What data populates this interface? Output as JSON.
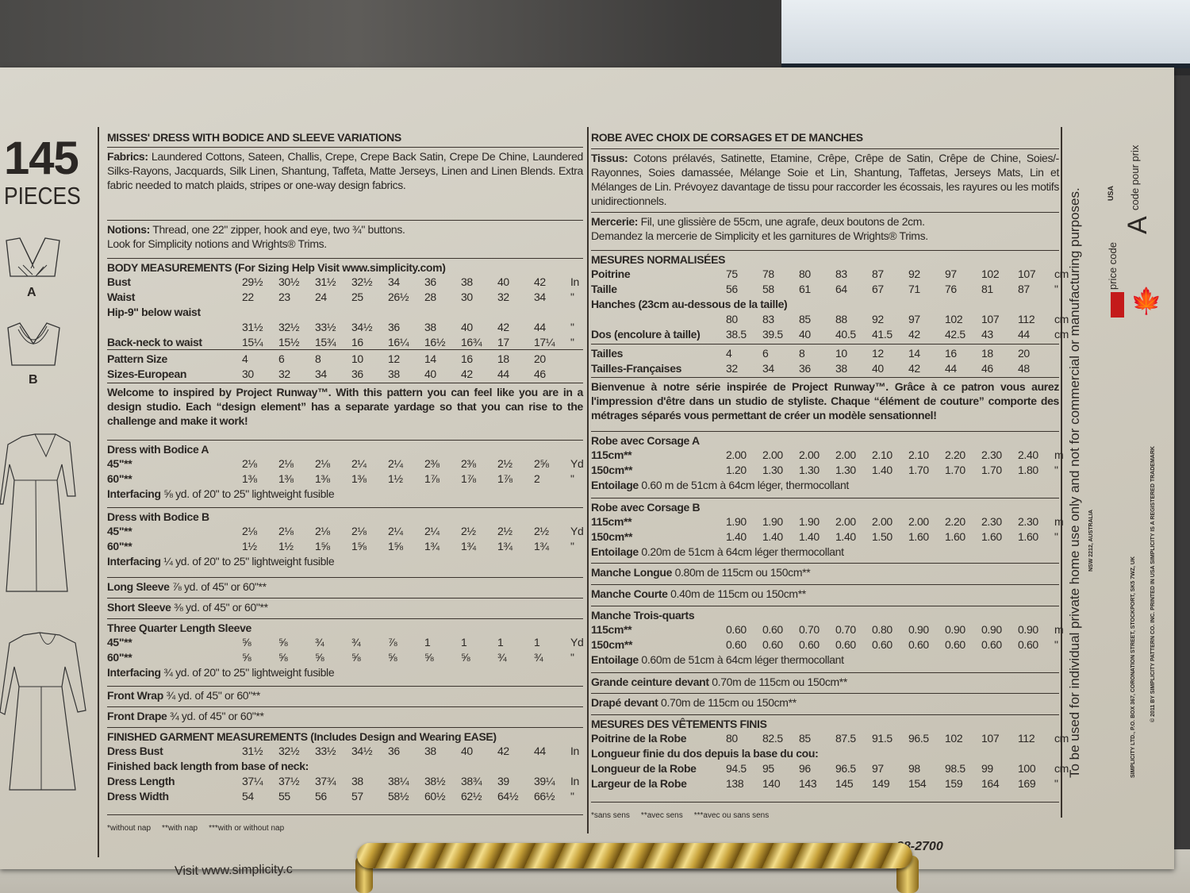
{
  "pieces": {
    "count": "145",
    "label": "PIECES",
    "views": [
      "A",
      "B"
    ]
  },
  "left": [
    {
      "type": "title",
      "text": "MISSES' DRESS WITH BODICE AND SLEEVE VARIATIONS"
    },
    {
      "type": "para",
      "label": "Fabrics:",
      "text": "Laundered Cottons, Sateen, Challis, Crepe, Crepe Back Satin, Crepe De Chine, Laundered Silks-Rayons, Jacquards, Silk Linen, Shantung, Taffeta, Matte Jerseys, Linen and Linen Blends. Extra fabric needed to match plaids, stripes or one-way design fabrics."
    },
    {
      "type": "para",
      "label": "Notions:",
      "text": "Thread, one 22\" zipper, hook and eye, two ¾\" buttons.",
      "line2": "Look for Simplicity notions and Wrights® Trims."
    },
    {
      "type": "table",
      "heading": "BODY MEASUREMENTS (For Sizing Help Visit www.simplicity.com)",
      "rows": [
        {
          "label": "Bust",
          "values": [
            "29½",
            "30½",
            "31½",
            "32½",
            "34",
            "36",
            "38",
            "40",
            "42"
          ],
          "unit": "In"
        },
        {
          "label": "Waist",
          "values": [
            "22",
            "23",
            "24",
            "25",
            "26½",
            "28",
            "30",
            "32",
            "34"
          ],
          "unit": "\""
        },
        {
          "label": "Hip-9\" below waist"
        },
        {
          "label": "",
          "values": [
            "31½",
            "32½",
            "33½",
            "34½",
            "36",
            "38",
            "40",
            "42",
            "44"
          ],
          "unit": "\""
        },
        {
          "label": "Back-neck to waist",
          "values": [
            "15¼",
            "15½",
            "15¾",
            "16",
            "16¼",
            "16½",
            "16¾",
            "17",
            "17¼"
          ],
          "unit": "\""
        }
      ]
    },
    {
      "type": "table",
      "rows": [
        {
          "label": "Pattern Size",
          "values": [
            "4",
            "6",
            "8",
            "10",
            "12",
            "14",
            "16",
            "18",
            "20"
          ]
        },
        {
          "label": "Sizes-European",
          "values": [
            "30",
            "32",
            "34",
            "36",
            "38",
            "40",
            "42",
            "44",
            "46"
          ]
        }
      ]
    },
    {
      "type": "para",
      "bold": true,
      "text": "Welcome to inspired by Project Runway™. With this pattern you can feel like you are in a design studio. Each “design element” has a separate yardage so that you can rise to the challenge and make it work!"
    },
    {
      "type": "table",
      "heading": "Dress with Bodice A",
      "rows": [
        {
          "label": "45\"**",
          "values": [
            "2⅛",
            "2⅛",
            "2⅛",
            "2¼",
            "2¼",
            "2⅜",
            "2⅜",
            "2½",
            "2⅝"
          ],
          "unit": "Yd"
        },
        {
          "label": "60\"**",
          "values": [
            "1⅜",
            "1⅜",
            "1⅜",
            "1⅜",
            "1½",
            "1⅞",
            "1⅞",
            "1⅞",
            "2"
          ],
          "unit": "\""
        }
      ],
      "note": {
        "label": "Interfacing",
        "text": "⅝ yd. of 20\" to 25\" lightweight fusible"
      }
    },
    {
      "type": "table",
      "heading": "Dress with Bodice B",
      "rows": [
        {
          "label": "45\"**",
          "values": [
            "2⅛",
            "2⅛",
            "2⅛",
            "2⅛",
            "2¼",
            "2¼",
            "2½",
            "2½",
            "2½"
          ],
          "unit": "Yd"
        },
        {
          "label": "60\"**",
          "values": [
            "1½",
            "1½",
            "1⅝",
            "1⅝",
            "1⅝",
            "1¾",
            "1¾",
            "1¾",
            "1¾"
          ],
          "unit": "\""
        }
      ],
      "note": {
        "label": "Interfacing",
        "text": "¼ yd. of 20\" to 25\" lightweight fusible"
      }
    },
    {
      "type": "para",
      "label": "Long Sleeve",
      "text": "⅞ yd. of 45\" or 60\"**"
    },
    {
      "type": "para",
      "label": "Short Sleeve",
      "text": "⅜ yd. of 45\" or 60\"**"
    },
    {
      "type": "table",
      "heading": "Three Quarter Length Sleeve",
      "rows": [
        {
          "label": "45\"**",
          "values": [
            "⅝",
            "⅝",
            "¾",
            "¾",
            "⅞",
            "1",
            "1",
            "1",
            "1"
          ],
          "unit": "Yd"
        },
        {
          "label": "60\"**",
          "values": [
            "⅝",
            "⅝",
            "⅝",
            "⅝",
            "⅝",
            "⅝",
            "⅝",
            "¾",
            "¾"
          ],
          "unit": "\""
        }
      ],
      "note": {
        "label": "Interfacing",
        "text": "¾ yd. of 20\" to 25\" lightweight fusible"
      }
    },
    {
      "type": "para",
      "label": "Front Wrap",
      "text": "¾ yd. of 45\" or 60\"**"
    },
    {
      "type": "para",
      "label": "Front Drape",
      "text": "¾ yd. of 45\" or 60\"**"
    },
    {
      "type": "table",
      "heading": "FINISHED GARMENT MEASUREMENTS (Includes Design and Wearing EASE)",
      "rows": [
        {
          "label": "Dress Bust",
          "values": [
            "31½",
            "32½",
            "33½",
            "34½",
            "36",
            "38",
            "40",
            "42",
            "44"
          ],
          "unit": "In"
        },
        {
          "label": "Finished back length from base of neck:"
        },
        {
          "label": "Dress Length",
          "values": [
            "37¼",
            "37½",
            "37¾",
            "38",
            "38¼",
            "38½",
            "38¾",
            "39",
            "39¼"
          ],
          "unit": "In"
        },
        {
          "label": "Dress Width",
          "values": [
            "54",
            "55",
            "56",
            "57",
            "58½",
            "60½",
            "62½",
            "64½",
            "66½"
          ],
          "unit": "\""
        }
      ]
    },
    {
      "type": "foot",
      "items": [
        "*without nap",
        "**with nap",
        "***with or without nap"
      ]
    }
  ],
  "right": [
    {
      "type": "title",
      "text": "ROBE AVEC CHOIX DE CORSAGES ET DE MANCHES"
    },
    {
      "type": "para",
      "label": "Tissus:",
      "text": "Cotons prélavés, Satinette, Etamine, Crêpe, Crêpe de Satin, Crêpe de Chine, Soies/-Rayonnes, Soies damassée, Mélange Soie et Lin, Shantung, Taffetas, Jerseys Mats, Lin et Mélanges de Lin. Prévoyez davantage de tissu pour raccorder les écossais, les rayures ou les motifs unidirectionnels."
    },
    {
      "type": "para",
      "label": "Mercerie:",
      "text": "Fil, une glissière de 55cm, une agrafe, deux boutons de 2cm.",
      "line2": "Demandez la mercerie de Simplicity et les garnitures de Wrights® Trims."
    },
    {
      "type": "table",
      "heading": "MESURES NORMALISÉES",
      "rows": [
        {
          "label": "Poitrine",
          "values": [
            "75",
            "78",
            "80",
            "83",
            "87",
            "92",
            "97",
            "102",
            "107"
          ],
          "unit": "cm"
        },
        {
          "label": "Taille",
          "values": [
            "56",
            "58",
            "61",
            "64",
            "67",
            "71",
            "76",
            "81",
            "87"
          ],
          "unit": "\""
        },
        {
          "label": "Hanches (23cm au-dessous de la taille)"
        },
        {
          "label": "",
          "values": [
            "80",
            "83",
            "85",
            "88",
            "92",
            "97",
            "102",
            "107",
            "112"
          ],
          "unit": "cm"
        },
        {
          "label": "Dos (encolure à taille)",
          "values": [
            "38.5",
            "39.5",
            "40",
            "40.5",
            "41.5",
            "42",
            "42.5",
            "43",
            "44"
          ],
          "unit": "cm"
        }
      ]
    },
    {
      "type": "table",
      "rows": [
        {
          "label": "Tailles",
          "values": [
            "4",
            "6",
            "8",
            "10",
            "12",
            "14",
            "16",
            "18",
            "20"
          ]
        },
        {
          "label": "Tailles-Françaises",
          "values": [
            "32",
            "34",
            "36",
            "38",
            "40",
            "42",
            "44",
            "46",
            "48"
          ]
        }
      ]
    },
    {
      "type": "para",
      "bold": true,
      "text": "Bienvenue à notre série inspirée de Project Runway™. Grâce à ce patron vous aurez l'impression d'être dans un studio de styliste. Chaque “élément de couture” comporte des métrages séparés vous permettant de créer un modèle sensationnel!"
    },
    {
      "type": "table",
      "heading": "Robe avec Corsage A",
      "rows": [
        {
          "label": "115cm**",
          "values": [
            "2.00",
            "2.00",
            "2.00",
            "2.00",
            "2.10",
            "2.10",
            "2.20",
            "2.30",
            "2.40"
          ],
          "unit": "m"
        },
        {
          "label": "150cm**",
          "values": [
            "1.20",
            "1.30",
            "1.30",
            "1.30",
            "1.40",
            "1.70",
            "1.70",
            "1.70",
            "1.80"
          ],
          "unit": "\""
        }
      ],
      "note": {
        "label": "Entoilage",
        "text": "0.60 m de 51cm à 64cm léger, thermocollant"
      }
    },
    {
      "type": "table",
      "heading": "Robe avec Corsage B",
      "rows": [
        {
          "label": "115cm**",
          "values": [
            "1.90",
            "1.90",
            "1.90",
            "2.00",
            "2.00",
            "2.00",
            "2.20",
            "2.30",
            "2.30"
          ],
          "unit": "m"
        },
        {
          "label": "150cm**",
          "values": [
            "1.40",
            "1.40",
            "1.40",
            "1.40",
            "1.50",
            "1.60",
            "1.60",
            "1.60",
            "1.60"
          ],
          "unit": "\""
        }
      ],
      "note": {
        "label": "Entoilage",
        "text": "0.20m de 51cm à 64cm léger thermocollant"
      }
    },
    {
      "type": "para",
      "label": "Manche Longue",
      "text": "0.80m de 115cm ou 150cm**"
    },
    {
      "type": "para",
      "label": "Manche Courte",
      "text": "0.40m de 115cm ou 150cm**"
    },
    {
      "type": "table",
      "heading": "Manche Trois-quarts",
      "rows": [
        {
          "label": "115cm**",
          "values": [
            "0.60",
            "0.60",
            "0.70",
            "0.70",
            "0.80",
            "0.90",
            "0.90",
            "0.90",
            "0.90"
          ],
          "unit": "m"
        },
        {
          "label": "150cm**",
          "values": [
            "0.60",
            "0.60",
            "0.60",
            "0.60",
            "0.60",
            "0.60",
            "0.60",
            "0.60",
            "0.60"
          ],
          "unit": "\""
        }
      ],
      "note": {
        "label": "Entoilage",
        "text": "0.60m de 51cm à 64cm léger thermocollant"
      }
    },
    {
      "type": "para",
      "label": "Grande ceinture devant",
      "text": "0.70m de 115cm ou 150cm**"
    },
    {
      "type": "para",
      "label": "Drapé devant",
      "text": "0.70m de 115cm ou 150cm**"
    },
    {
      "type": "table",
      "heading": "MESURES DES VÊTEMENTS FINIS",
      "rows": [
        {
          "label": "Poitrine de la Robe",
          "values": [
            "80",
            "82.5",
            "85",
            "87.5",
            "91.5",
            "96.5",
            "102",
            "107",
            "112"
          ],
          "unit": "cm"
        },
        {
          "label": "Longueur finie du dos depuis la base du cou:"
        },
        {
          "label": "Longueur de la Robe",
          "values": [
            "94.5",
            "95",
            "96",
            "96.5",
            "97",
            "98",
            "98.5",
            "99",
            "100"
          ],
          "unit": "cm"
        },
        {
          "label": "Largeur de la Robe",
          "values": [
            "138",
            "140",
            "143",
            "145",
            "149",
            "154",
            "159",
            "164",
            "169"
          ],
          "unit": "\""
        }
      ]
    },
    {
      "type": "foot",
      "items": [
        "*sans sens",
        "**avec sens",
        "***avec ou sans sens"
      ]
    }
  ],
  "side": {
    "usage": "To be used for individual private home use only and not for commercial or manufacturing purposes.",
    "australia": "NSW 2212, AUSTRALIA",
    "uk": "SIMPLICITY LTD., P.O. BOX 367, CORONATION STREET, STOCKPORT, SK5 7WZ, UK",
    "copyright": "© 2011 BY SIMPLICITY PATTERN CO. INC.    PRINTED IN USA    SIMPLICITY IS A REGISTERED TRADEMARK",
    "price_code_label": "price code",
    "price_code": "A",
    "code_pour_prix": "code pour prix",
    "usa": "USA",
    "flag_color": "#c41a1a"
  },
  "bottom": {
    "visit": "Visit www.simplicity.c",
    "phone": "88-2700"
  }
}
